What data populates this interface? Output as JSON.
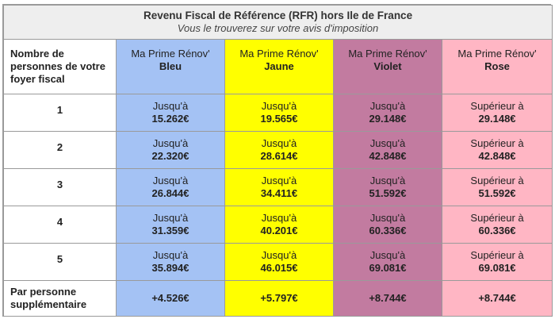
{
  "title": "Revenu Fiscal de Référence (RFR) hors Ile de France",
  "subtitle": "Vous le trouverez sur votre avis d'imposition",
  "header": {
    "rowhead": "Nombre de personnes de votre foyer fiscal",
    "columns": [
      {
        "line1": "Ma Prime Rénov'",
        "line2": "Bleu"
      },
      {
        "line1": "Ma Prime Rénov'",
        "line2": "Jaune"
      },
      {
        "line1": "Ma Prime Rénov'",
        "line2": "Violet"
      },
      {
        "line1": "Ma Prime Rénov'",
        "line2": "Rose"
      }
    ]
  },
  "rows": [
    {
      "n": "1",
      "cells": [
        {
          "prefix": "Jusqu'à",
          "value": "15.262€"
        },
        {
          "prefix": "Jusqu'à",
          "value": "19.565€"
        },
        {
          "prefix": "Jusqu'à",
          "value": "29.148€"
        },
        {
          "prefix": "Supérieur à",
          "value": "29.148€"
        }
      ]
    },
    {
      "n": "2",
      "cells": [
        {
          "prefix": "Jusqu'à",
          "value": "22.320€"
        },
        {
          "prefix": "Jusqu'à",
          "value": "28.614€"
        },
        {
          "prefix": "Jusqu'à",
          "value": "42.848€"
        },
        {
          "prefix": "Supérieur à",
          "value": "42.848€"
        }
      ]
    },
    {
      "n": "3",
      "cells": [
        {
          "prefix": "Jusqu'à",
          "value": "26.844€"
        },
        {
          "prefix": "Jusqu'à",
          "value": "34.411€"
        },
        {
          "prefix": "Jusqu'à",
          "value": "51.592€"
        },
        {
          "prefix": "Supérieur à",
          "value": "51.592€"
        }
      ]
    },
    {
      "n": "4",
      "cells": [
        {
          "prefix": "Jusqu'à",
          "value": "31.359€"
        },
        {
          "prefix": "Jusqu'à",
          "value": "40.201€"
        },
        {
          "prefix": "Jusqu'à",
          "value": "60.336€"
        },
        {
          "prefix": "Supérieur à",
          "value": "60.336€"
        }
      ]
    },
    {
      "n": "5",
      "cells": [
        {
          "prefix": "Jusqu'à",
          "value": "35.894€"
        },
        {
          "prefix": "Jusqu'à",
          "value": "46.015€"
        },
        {
          "prefix": "Jusqu'à",
          "value": "69.081€"
        },
        {
          "prefix": "Supérieur à",
          "value": "69.081€"
        }
      ]
    }
  ],
  "extra": {
    "label": "Par personne supplémentaire",
    "values": [
      "+4.526€",
      "+5.797€",
      "+8.744€",
      "+8.744€"
    ]
  },
  "colors": {
    "bleu": "#a4c2f4",
    "jaune": "#ffff00",
    "violet": "#c27ba0",
    "rose": "#ffb6c4",
    "title_bg": "#eeeeee"
  }
}
